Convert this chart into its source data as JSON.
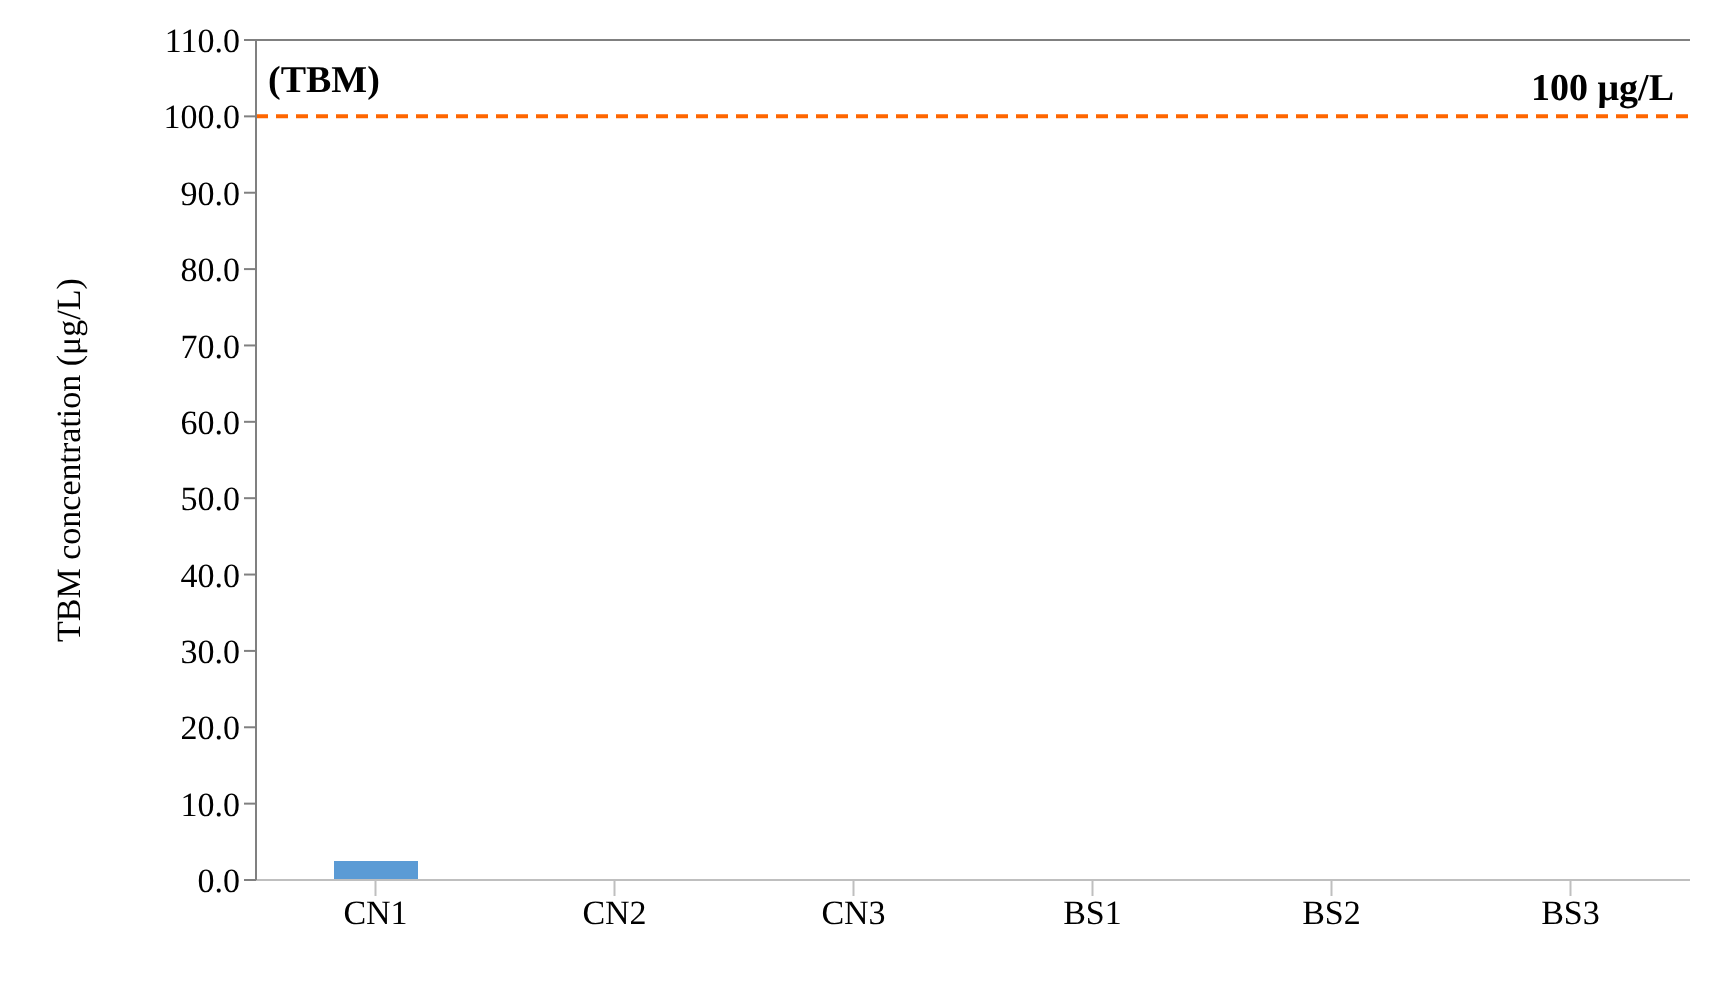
{
  "chart_data": {
    "type": "bar",
    "ylabel": "TBM concentration (μg/L)",
    "categories": [
      "CN1",
      "CN2",
      "CN3",
      "BS1",
      "BS2",
      "BS3"
    ],
    "values": [
      2.5,
      0,
      0,
      0,
      0,
      0
    ],
    "color": "#5b9bd5",
    "ylim": [
      0,
      110
    ],
    "yticks": [
      {
        "value": 0,
        "label": "0.0"
      },
      {
        "value": 10,
        "label": "10.0"
      },
      {
        "value": 20,
        "label": "20.0"
      },
      {
        "value": 30,
        "label": "30.0"
      },
      {
        "value": 40,
        "label": "40.0"
      },
      {
        "value": 50,
        "label": "50.0"
      },
      {
        "value": 60,
        "label": "60.0"
      },
      {
        "value": 70,
        "label": "70.0"
      },
      {
        "value": 80,
        "label": "80.0"
      },
      {
        "value": 90,
        "label": "90.0"
      },
      {
        "value": 100,
        "label": "100.0"
      },
      {
        "value": 110,
        "label": "110.0"
      }
    ],
    "grid": false,
    "legend": false,
    "ref_lines": [
      {
        "axis": "y",
        "value": 100,
        "label": "100 μg/L",
        "color": "#ff6600",
        "line_style": "dashed"
      }
    ],
    "annotations": [
      "(TBM)"
    ]
  }
}
